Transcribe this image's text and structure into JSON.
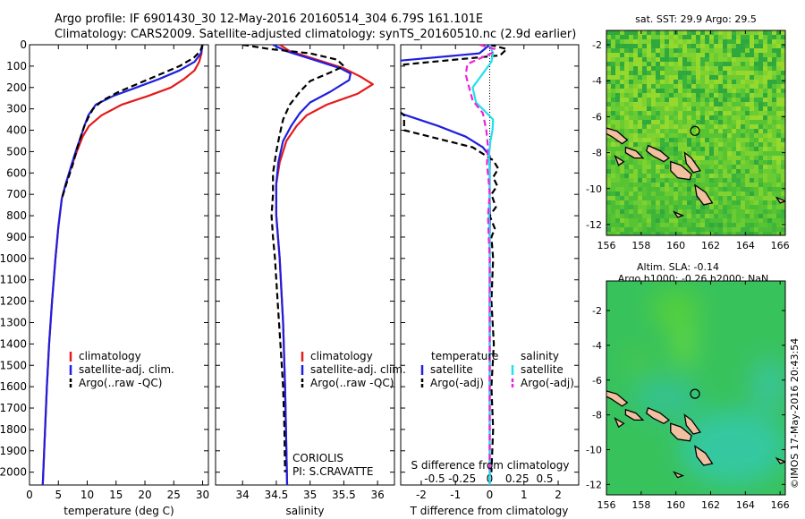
{
  "figure": {
    "title_line1": "Argo profile: IF 6901430_30 12-May-2016 20160514_304 6.79S 161.101E",
    "title_line2": "Climatology: CARS2009. Satellite-adjusted climatology: synTS_20160510.nc (2.9d earlier)",
    "timestamp": "©IMOS 17-May-2016 20:43:54",
    "colors": {
      "climatology": "#e41a1c",
      "satellite": "#1f1fe0",
      "argo": "#000000",
      "salinity_sat": "#22e0ee",
      "salinity_argo": "#ee22dd"
    }
  },
  "chart_data": [
    {
      "type": "line",
      "panel": "temperature",
      "xlabel": "temperature (deg C)",
      "xlim": [
        0,
        31
      ],
      "xticks": [
        0,
        5,
        10,
        15,
        20,
        25,
        30
      ],
      "ylim": [
        2060,
        0
      ],
      "yticks": [
        0,
        100,
        200,
        300,
        400,
        500,
        600,
        700,
        800,
        900,
        1000,
        1100,
        1200,
        1300,
        1400,
        1500,
        1600,
        1700,
        1800,
        1900,
        2000
      ],
      "ytick_labels": [
        "0",
        "100",
        "200",
        "300",
        "400",
        "500",
        "600",
        "700",
        "800",
        "900",
        "1000",
        "1100",
        "1200",
        "1300",
        "1400",
        "1500",
        "1600",
        "1700",
        "1800",
        "1900",
        "2000"
      ],
      "series": [
        {
          "name": "climatology",
          "color": "#e41a1c",
          "dash": "none",
          "points": [
            [
              29.9,
              0
            ],
            [
              29.8,
              40
            ],
            [
              29.4,
              80
            ],
            [
              28.6,
              120
            ],
            [
              26.8,
              160
            ],
            [
              24.5,
              200
            ],
            [
              20.5,
              240
            ],
            [
              16,
              280
            ],
            [
              12.5,
              330
            ],
            [
              10.3,
              380
            ],
            [
              9.2,
              430
            ],
            [
              8.2,
              500
            ],
            [
              7.4,
              560
            ],
            [
              6.3,
              650
            ],
            [
              5.6,
              720
            ],
            [
              5.0,
              850
            ],
            [
              4.5,
              1000
            ],
            [
              3.9,
              1200
            ],
            [
              3.4,
              1400
            ],
            [
              3.0,
              1600
            ],
            [
              2.7,
              1800
            ],
            [
              2.3,
              2060
            ]
          ]
        },
        {
          "name": "satellite-adj. clim.",
          "color": "#1f1fe0",
          "dash": "none",
          "points": [
            [
              30.0,
              0
            ],
            [
              29.7,
              40
            ],
            [
              28.6,
              80
            ],
            [
              26,
              120
            ],
            [
              22.5,
              160
            ],
            [
              18.5,
              200
            ],
            [
              14.5,
              240
            ],
            [
              11.5,
              280
            ],
            [
              10.2,
              330
            ],
            [
              9.5,
              380
            ],
            [
              8.9,
              430
            ],
            [
              8.0,
              500
            ],
            [
              7.3,
              560
            ],
            [
              6.3,
              650
            ],
            [
              5.6,
              720
            ],
            [
              5.0,
              850
            ],
            [
              4.5,
              1000
            ],
            [
              3.9,
              1200
            ],
            [
              3.4,
              1400
            ],
            [
              3.0,
              1600
            ],
            [
              2.7,
              1800
            ],
            [
              2.3,
              2060
            ]
          ]
        },
        {
          "name": "Argo(..raw -QC)",
          "color": "#000000",
          "dash": "7,4",
          "points": [
            [
              30.0,
              0
            ],
            [
              29.6,
              30
            ],
            [
              28.5,
              60
            ],
            [
              26,
              100
            ],
            [
              22.5,
              140
            ],
            [
              19,
              180
            ],
            [
              15.5,
              220
            ],
            [
              12.7,
              260
            ],
            [
              11,
              300
            ],
            [
              10.2,
              340
            ],
            [
              9.5,
              380
            ],
            [
              9.0,
              420
            ],
            [
              8.3,
              480
            ],
            [
              7.5,
              560
            ],
            [
              6.4,
              650
            ],
            [
              5.6,
              720
            ]
          ]
        }
      ],
      "legend": [
        "climatology",
        "satellite-adj. clim.",
        "Argo(..raw -QC)"
      ]
    },
    {
      "type": "line",
      "panel": "salinity",
      "xlabel": "salinity",
      "xlim": [
        33.6,
        36.25
      ],
      "xticks": [
        34,
        34.5,
        35,
        35.5,
        36
      ],
      "xtick_labels": [
        "34",
        "34.5",
        "35",
        "35.5",
        "36"
      ],
      "ylim": [
        2060,
        0
      ],
      "series": [
        {
          "name": "climatology",
          "color": "#e41a1c",
          "dash": "none",
          "points": [
            [
              34.55,
              0
            ],
            [
              34.7,
              30
            ],
            [
              35.1,
              70
            ],
            [
              35.5,
              110
            ],
            [
              35.75,
              150
            ],
            [
              35.93,
              185
            ],
            [
              35.7,
              230
            ],
            [
              35.25,
              280
            ],
            [
              34.95,
              330
            ],
            [
              34.8,
              380
            ],
            [
              34.65,
              450
            ],
            [
              34.55,
              550
            ],
            [
              34.5,
              650
            ],
            [
              34.5,
              800
            ],
            [
              34.55,
              1000
            ],
            [
              34.6,
              1300
            ],
            [
              34.63,
              1600
            ],
            [
              34.66,
              2060
            ]
          ]
        },
        {
          "name": "satellite-adj. clim.",
          "color": "#1f1fe0",
          "dash": "none",
          "points": [
            [
              34.45,
              0
            ],
            [
              34.65,
              30
            ],
            [
              35.05,
              70
            ],
            [
              35.45,
              110
            ],
            [
              35.6,
              135
            ],
            [
              35.58,
              165
            ],
            [
              35.3,
              220
            ],
            [
              35.0,
              270
            ],
            [
              34.85,
              320
            ],
            [
              34.72,
              380
            ],
            [
              34.6,
              450
            ],
            [
              34.53,
              550
            ],
            [
              34.5,
              650
            ],
            [
              34.5,
              800
            ],
            [
              34.55,
              1000
            ],
            [
              34.6,
              1300
            ],
            [
              34.63,
              1600
            ],
            [
              34.66,
              2060
            ]
          ]
        },
        {
          "name": "Argo(..raw -QC)",
          "color": "#000000",
          "dash": "7,4",
          "points": [
            [
              34.0,
              0
            ],
            [
              34.4,
              20
            ],
            [
              35.0,
              40
            ],
            [
              35.4,
              70
            ],
            [
              35.5,
              100
            ],
            [
              35.3,
              130
            ],
            [
              35.0,
              170
            ],
            [
              34.85,
              220
            ],
            [
              34.7,
              280
            ],
            [
              34.6,
              350
            ],
            [
              34.55,
              420
            ],
            [
              34.5,
              500
            ],
            [
              34.45,
              600
            ],
            [
              34.45,
              700
            ],
            [
              34.43,
              800
            ],
            [
              34.45,
              900
            ],
            [
              34.48,
              1000
            ],
            [
              34.52,
              1200
            ],
            [
              34.56,
              1400
            ],
            [
              34.6,
              1600
            ],
            [
              34.62,
              1800
            ],
            [
              34.63,
              2000
            ]
          ]
        }
      ],
      "legend": [
        "climatology",
        "satellite-adj. clim.",
        "Argo(..raw -QC)"
      ],
      "annotation_line1": "CORIOLIS",
      "annotation_line2": "PI: S.CRAVATTE"
    },
    {
      "type": "line",
      "panel": "difference",
      "xlabel": "T difference from climatology",
      "xlabel_top": "S difference from climatology",
      "xlim": [
        -2.6,
        2.6
      ],
      "xticks": [
        -2,
        -1,
        0,
        1,
        2
      ],
      "xtick_labels": [
        "-2",
        "-1",
        "0",
        "1",
        "2"
      ],
      "sticks": [
        -0.5,
        -0.25,
        0,
        0.25,
        0.5
      ],
      "stick_labels": [
        "-0.5",
        "-0.25",
        "0",
        "0.25",
        "0.5"
      ],
      "ylim": [
        2060,
        0
      ],
      "series": [
        {
          "name": "satellite",
          "group": "temperature",
          "color": "#1f1fe0",
          "dash": "none",
          "points": [
            [
              0,
              0
            ],
            [
              -0.3,
              40
            ],
            [
              -3,
              80
            ],
            [
              -5,
              200
            ],
            [
              -3,
              300
            ],
            [
              -1.5,
              380
            ],
            [
              -0.7,
              430
            ],
            [
              -0.2,
              480
            ],
            [
              0,
              520
            ],
            [
              0,
              700
            ],
            [
              0,
              2060
            ]
          ]
        },
        {
          "name": "Argo(-adj)",
          "group": "temperature",
          "color": "#000000",
          "dash": "7,4",
          "points": [
            [
              0,
              0
            ],
            [
              0.5,
              20
            ],
            [
              0.3,
              50
            ],
            [
              -3,
              100
            ],
            [
              -3.5,
              200
            ],
            [
              -2.5,
              330
            ],
            [
              -2.5,
              400
            ],
            [
              -1.5,
              440
            ],
            [
              -0.5,
              480
            ],
            [
              0.1,
              540
            ],
            [
              0.25,
              580
            ],
            [
              0.1,
              620
            ],
            [
              0.22,
              660
            ],
            [
              0.05,
              700
            ],
            [
              0.18,
              760
            ],
            [
              0.0,
              800
            ],
            [
              0.15,
              860
            ],
            [
              0.05,
              900
            ],
            [
              0.1,
              1000
            ],
            [
              0.05,
              1200
            ],
            [
              0.12,
              1400
            ],
            [
              0.05,
              1600
            ],
            [
              0.1,
              1800
            ],
            [
              0.05,
              2000
            ]
          ]
        },
        {
          "name": "satellite",
          "group": "salinity",
          "color": "#22e0ee",
          "dash": "none",
          "points": [
            [
              0,
              0
            ],
            [
              0.1,
              40
            ],
            [
              0.05,
              80
            ],
            [
              -0.5,
              200
            ],
            [
              -0.4,
              270
            ],
            [
              -0.15,
              310
            ],
            [
              0.1,
              350
            ],
            [
              0.08,
              400
            ],
            [
              0.02,
              450
            ],
            [
              -0.02,
              520
            ],
            [
              0,
              600
            ],
            [
              0,
              700
            ],
            [
              -0.02,
              800
            ],
            [
              0,
              900
            ],
            [
              0.01,
              1200
            ],
            [
              0,
              1600
            ],
            [
              0,
              2060
            ]
          ]
        },
        {
          "name": "Argo(-adj)",
          "group": "salinity",
          "color": "#ee22dd",
          "dash": "7,4",
          "points": [
            [
              -0.3,
              0
            ],
            [
              0.15,
              20
            ],
            [
              0.05,
              40
            ],
            [
              -0.65,
              90
            ],
            [
              -0.7,
              140
            ],
            [
              -0.6,
              200
            ],
            [
              -0.5,
              260
            ],
            [
              -0.2,
              320
            ],
            [
              -0.1,
              400
            ],
            [
              -0.05,
              480
            ],
            [
              -0.08,
              560
            ],
            [
              -0.03,
              640
            ],
            [
              0,
              700
            ],
            [
              -0.05,
              800
            ],
            [
              -0.03,
              900
            ],
            [
              0,
              1000
            ],
            [
              0,
              1200
            ],
            [
              0,
              1400
            ],
            [
              0,
              1600
            ],
            [
              0,
              2000
            ]
          ]
        }
      ],
      "legend_temp_title": "temperature",
      "legend_sal_title": "salinity",
      "legend_temp": [
        "satellite",
        "Argo(-adj)"
      ],
      "legend_sal": [
        "satellite",
        "Argo(-adj)"
      ]
    },
    {
      "type": "heatmap",
      "panel": "map_sst",
      "title": "sat. SST: 29.9 Argo: 29.5",
      "xlim": [
        156,
        166.3
      ],
      "ylim": [
        -12.6,
        -1.2
      ],
      "xticks": [
        156,
        158,
        160,
        162,
        164,
        166
      ],
      "yticks": [
        -2,
        -4,
        -6,
        -8,
        -10,
        -12
      ],
      "argo_position": [
        161.1,
        -6.79
      ]
    },
    {
      "type": "heatmap",
      "panel": "map_sla",
      "title": "Altim. SLA: -0.14",
      "subtitle": "Argo h1000: -0.26 h2000: NaN",
      "xlim": [
        156,
        166.3
      ],
      "ylim": [
        -12.6,
        -0.3
      ],
      "xticks": [
        156,
        158,
        160,
        162,
        164,
        166
      ],
      "yticks": [
        -2,
        -4,
        -6,
        -8,
        -10,
        -12
      ],
      "argo_position": [
        161.1,
        -6.79
      ]
    }
  ]
}
